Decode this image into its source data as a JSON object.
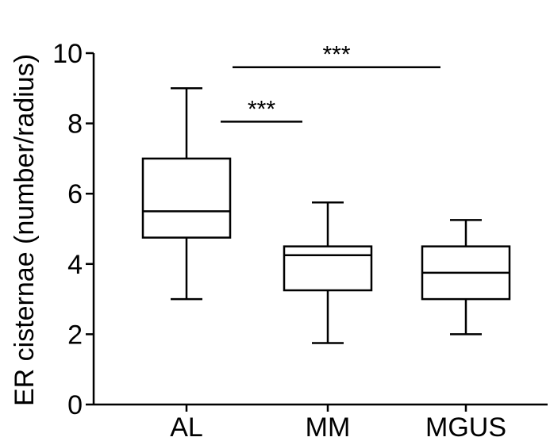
{
  "chart_data": {
    "type": "box",
    "title": "",
    "xlabel": "",
    "ylabel": "ER cisternae (number/radius)",
    "ylim": [
      0,
      10
    ],
    "yticks": [
      0,
      2,
      4,
      6,
      8,
      10
    ],
    "categories": [
      "AL",
      "MM",
      "MGUS"
    ],
    "boxes": [
      {
        "category": "AL",
        "min": 3.0,
        "q1": 4.75,
        "median": 5.5,
        "q3": 7.0,
        "max": 9.0
      },
      {
        "category": "MM",
        "min": 1.75,
        "q1": 3.25,
        "median": 4.25,
        "q3": 4.5,
        "max": 5.75
      },
      {
        "category": "MGUS",
        "min": 2.0,
        "q1": 3.0,
        "median": 3.75,
        "q3": 4.5,
        "max": 5.25
      }
    ],
    "significance": [
      {
        "from": "AL",
        "to": "MM",
        "y": 8.05,
        "label": "***"
      },
      {
        "from": "AL",
        "to": "MGUS",
        "y": 9.6,
        "label": "***"
      }
    ],
    "grid": false
  }
}
